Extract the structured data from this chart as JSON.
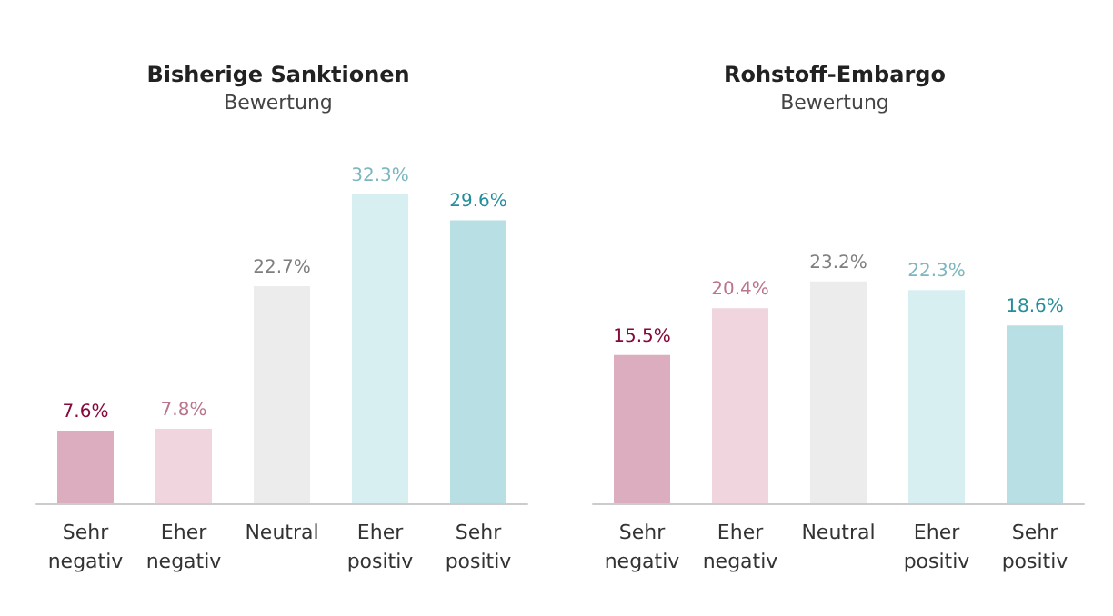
{
  "chart_data": [
    {
      "type": "bar",
      "title": "Bisherige Sanktionen",
      "subtitle": "Bewertung",
      "categories": [
        "Sehr negativ",
        "Eher negativ",
        "Neutral",
        "Eher positiv",
        "Sehr positiv"
      ],
      "values": [
        7.6,
        7.8,
        22.7,
        32.3,
        29.6
      ],
      "value_labels": [
        "7.6%",
        "7.8%",
        "22.7%",
        "32.3%",
        "29.6%"
      ],
      "colors": [
        "#dcacbf",
        "#f0d5df",
        "#ececec",
        "#d8eff2",
        "#b7dfe4"
      ]
    },
    {
      "type": "bar",
      "title": "Rohstoff-Embargo",
      "subtitle": "Bewertung",
      "categories": [
        "Sehr negativ",
        "Eher negativ",
        "Neutral",
        "Eher positiv",
        "Sehr positiv"
      ],
      "values": [
        15.5,
        20.4,
        23.2,
        22.3,
        18.6
      ],
      "value_labels": [
        "15.5%",
        "20.4%",
        "23.2%",
        "22.3%",
        "18.6%"
      ],
      "colors": [
        "#dcacbf",
        "#f0d5df",
        "#ececec",
        "#d8eff2",
        "#b7dfe4"
      ]
    }
  ]
}
